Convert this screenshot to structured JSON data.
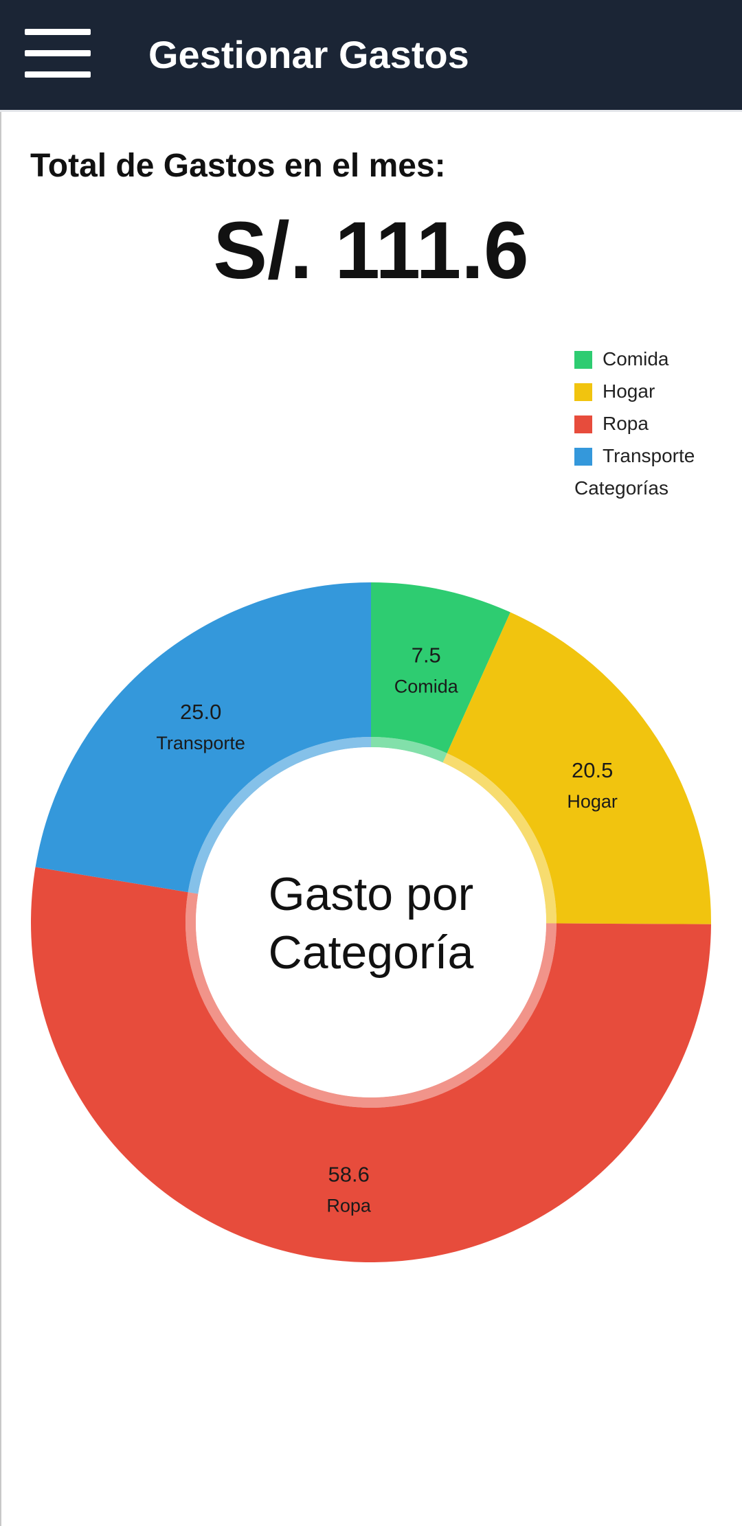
{
  "app_bar": {
    "title": "Gestionar Gastos",
    "menu_icon": "hamburger-menu-icon"
  },
  "summary": {
    "label": "Total de Gastos en el mes:",
    "value": "S/. 111.6"
  },
  "chart_data": {
    "type": "pie",
    "donut": true,
    "center_title_lines": [
      "Gasto por",
      "Categoría"
    ],
    "legend_title": "Categorías",
    "legend_position": "top-right",
    "categories": [
      "Comida",
      "Hogar",
      "Ropa",
      "Transporte"
    ],
    "values": [
      7.5,
      20.5,
      58.6,
      25.0
    ],
    "value_labels": [
      "7.5",
      "20.5",
      "58.6",
      "25.0"
    ],
    "colors": [
      "#2ecc71",
      "#f1c40f",
      "#e74c3c",
      "#3498db"
    ],
    "start_angle_deg": 0,
    "direction": "clockwise"
  }
}
